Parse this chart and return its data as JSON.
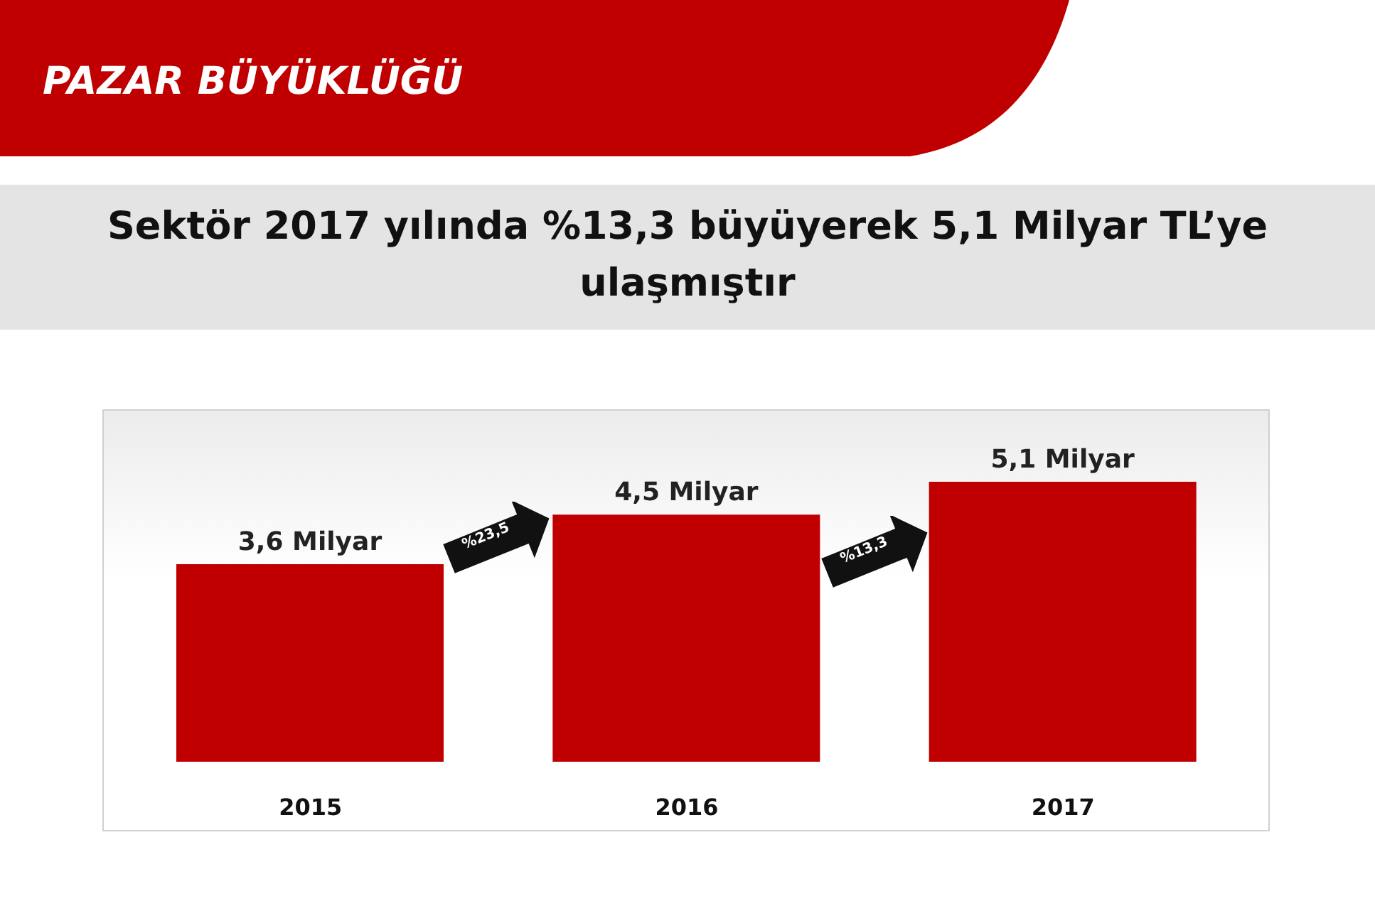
{
  "chart_data": {
    "type": "bar",
    "title": "PAZAR BÜYÜKLÜĞÜ",
    "subtitle": "Sektör 2017 yılında %13,3 büyüyerek 5,1 Milyar TL’ye ulaşmıştır",
    "categories": [
      "2015",
      "2016",
      "2017"
    ],
    "values": [
      3.6,
      4.5,
      5.1
    ],
    "value_labels": [
      "3,6 Milyar",
      "4,5 Milyar",
      "5,1 Milyar"
    ],
    "color": "#c00000",
    "annotations": [
      "%23,5",
      "%13,3"
    ],
    "grid": false,
    "legend": false
  }
}
